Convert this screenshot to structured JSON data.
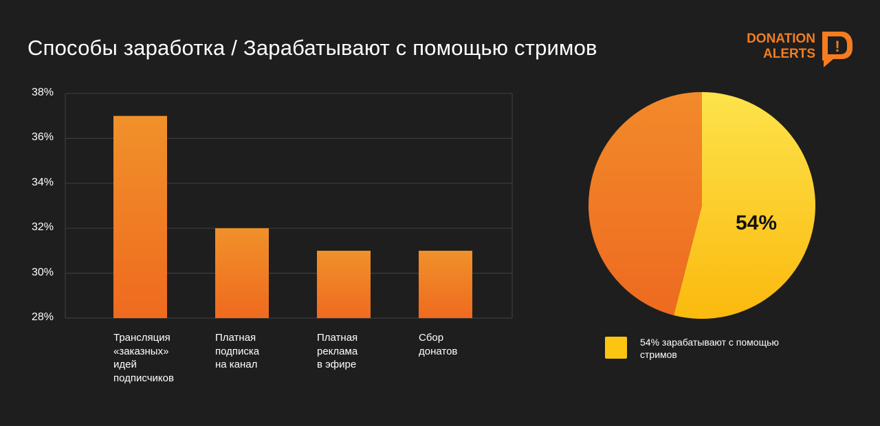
{
  "header": {
    "title": "Способы заработка / Зарабатывают с помощью стримов"
  },
  "logo": {
    "line1": "DONATION",
    "line2": "ALERTS",
    "mark": "!",
    "color": "#f57d20"
  },
  "chart_data": [
    {
      "type": "bar",
      "categories": [
        "Трансляция\n«заказных»\nидей\nподписчиков",
        "Платная\nподписка\nна канал",
        "Платная\nреклама\nв эфире",
        "Сбор\nдонатов"
      ],
      "values": [
        37,
        32,
        31,
        31
      ],
      "ylim": [
        28,
        38
      ],
      "yticks": [
        "38%",
        "36%",
        "34%",
        "32%",
        "30%",
        "28%"
      ],
      "grid": true,
      "colors": {
        "top": "#f0912a",
        "bottom": "#ef6a1f"
      }
    },
    {
      "type": "pie",
      "slices": [
        {
          "label": "54% зарабатывают с помощью стримов",
          "value": 54,
          "color": "#fcc512"
        },
        {
          "value": 46,
          "color": "#f07a22"
        }
      ],
      "center_label": "54%",
      "legend_placement": "bottom"
    }
  ]
}
